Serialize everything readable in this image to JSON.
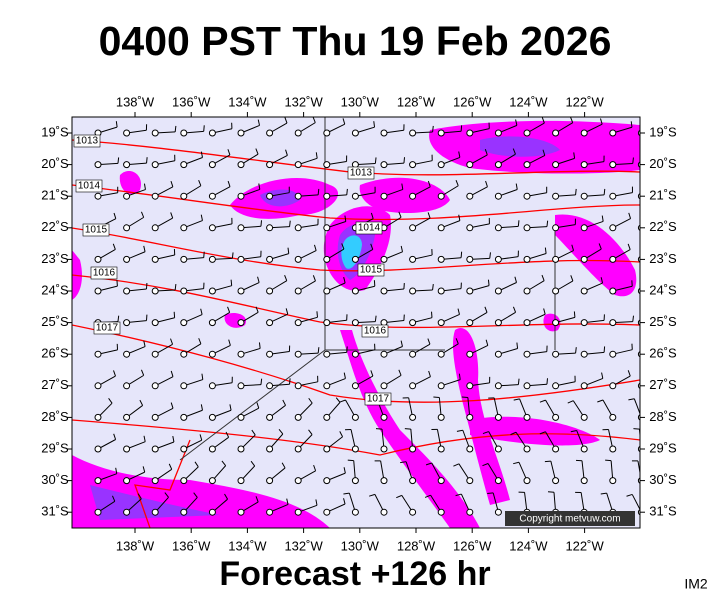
{
  "header": {
    "title": "0400 PST Thu 19 Feb 2026"
  },
  "map": {
    "lon_labels": [
      "138˚W",
      "136˚W",
      "134˚W",
      "132˚W",
      "130˚W",
      "128˚W",
      "126˚W",
      "124˚W",
      "122˚W"
    ],
    "lat_labels": [
      "19˚S",
      "20˚S",
      "21˚S",
      "22˚S",
      "23˚S",
      "24˚S",
      "25˚S",
      "26˚S",
      "27˚S",
      "28˚S",
      "29˚S",
      "30˚S",
      "31˚S"
    ],
    "isobar_labels": [
      1013,
      1014,
      1015,
      1016,
      1017,
      1013,
      1014,
      1015,
      1016,
      1017
    ],
    "copyright": "Copyright metvuw.com"
  },
  "footer": {
    "forecast": "Forecast +126 hr",
    "code": "IM2"
  }
}
